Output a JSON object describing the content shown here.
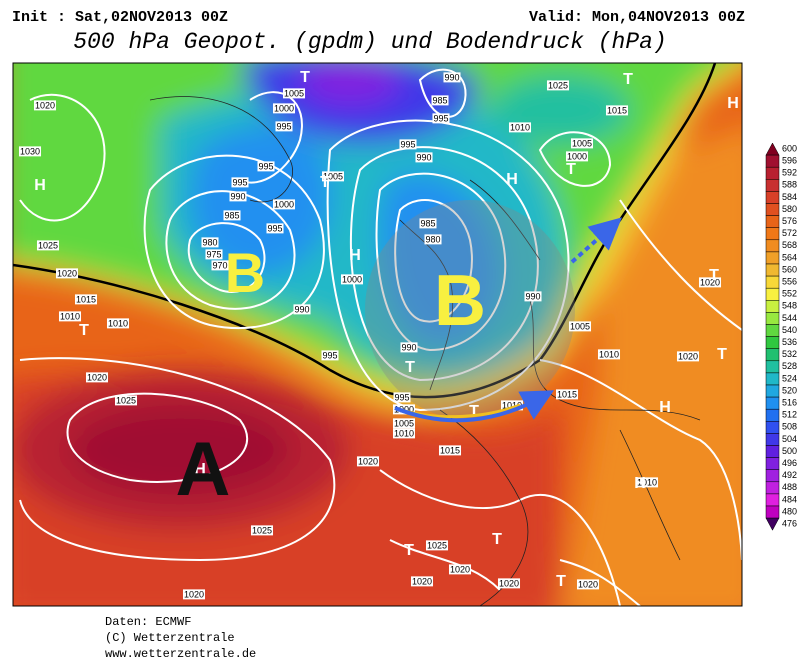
{
  "header": {
    "init": "Init : Sat,02NOV2013 00Z",
    "valid": "Valid: Mon,04NOV2013 00Z",
    "title": "500 hPa Geopot. (gpdm) und Bodendruck (hPa)"
  },
  "map": {
    "centers": [
      "B",
      "B",
      "A"
    ],
    "isobar_labels": [
      "1020",
      "1030",
      "1025",
      "1020",
      "1015",
      "1010",
      "1010",
      "1020",
      "1025",
      "1020",
      "1015",
      "1010",
      "1005",
      "1000",
      "995",
      "995",
      "990",
      "1000",
      "985",
      "980",
      "975",
      "970",
      "990",
      "995",
      "995",
      "1000",
      "995",
      "1005",
      "1000",
      "995",
      "1005",
      "990",
      "985",
      "995",
      "995",
      "990",
      "985",
      "980",
      "990",
      "990",
      "1010",
      "1025",
      "1015",
      "1005",
      "1000",
      "1005",
      "1010",
      "1015",
      "1010",
      "1020",
      "1020",
      "1025",
      "1020",
      "1020",
      "1020",
      "1020",
      "1025",
      "1020",
      "1030",
      "1010"
    ],
    "pressure_symbols": [
      "H",
      "T",
      "T",
      "T",
      "H",
      "T",
      "H",
      "T",
      "T",
      "H",
      "T",
      "T",
      "H",
      "H",
      "T",
      "T",
      "T",
      "T",
      "H"
    ]
  },
  "colorbar": {
    "levels": [
      600,
      596,
      592,
      588,
      584,
      580,
      576,
      572,
      568,
      564,
      560,
      556,
      552,
      548,
      544,
      540,
      536,
      532,
      528,
      524,
      520,
      516,
      512,
      508,
      504,
      500,
      496,
      492,
      488,
      484,
      480,
      476
    ],
    "colors": [
      "#800020",
      "#a01030",
      "#b82030",
      "#c83030",
      "#d84028",
      "#e05020",
      "#e86418",
      "#f07818",
      "#f08c20",
      "#f0a028",
      "#f0b830",
      "#f8d838",
      "#f8f040",
      "#c8f040",
      "#98e840",
      "#60d840",
      "#30c840",
      "#20c070",
      "#20c0a0",
      "#20b8c8",
      "#20a8e0",
      "#2090f0",
      "#2070f0",
      "#3050f0",
      "#4038e8",
      "#6020e0",
      "#8020e0",
      "#a020e0",
      "#c020e0",
      "#e020e0",
      "#c000c0",
      "#400060"
    ]
  },
  "footer": [
    "Daten: ECMWF",
    "(C) Wetterzentrale",
    "www.wetterzentrale.de"
  ]
}
